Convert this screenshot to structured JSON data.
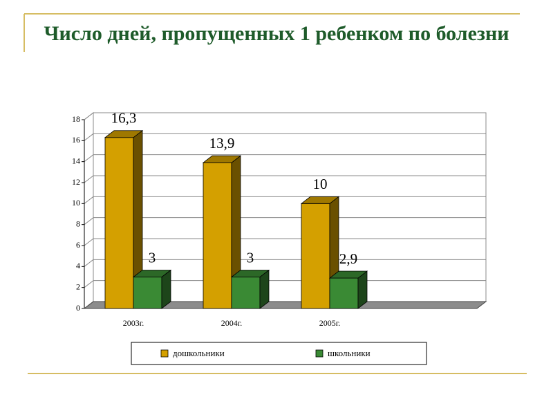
{
  "chart_data": {
    "type": "bar3d",
    "title": "Число дней, пропущенных 1 ребенком по болезни",
    "categories": [
      "2003г.",
      "2004г.",
      "2005г.",
      null
    ],
    "series": [
      {
        "name": "дошкольники",
        "color": "#d4a000",
        "values": [
          16.3,
          13.9,
          10,
          null
        ],
        "value_labels": [
          "16,3",
          "13,9",
          "10",
          null
        ]
      },
      {
        "name": "школьники",
        "color": "#3a8a34",
        "values": [
          3,
          3,
          2.9,
          null
        ],
        "value_labels": [
          "3",
          "3",
          "2,9",
          null
        ]
      }
    ],
    "ylim": [
      0,
      18
    ],
    "yticks": [
      0,
      2,
      4,
      6,
      8,
      10,
      12,
      14,
      16,
      18
    ],
    "grid": true,
    "legend": "bottom"
  }
}
